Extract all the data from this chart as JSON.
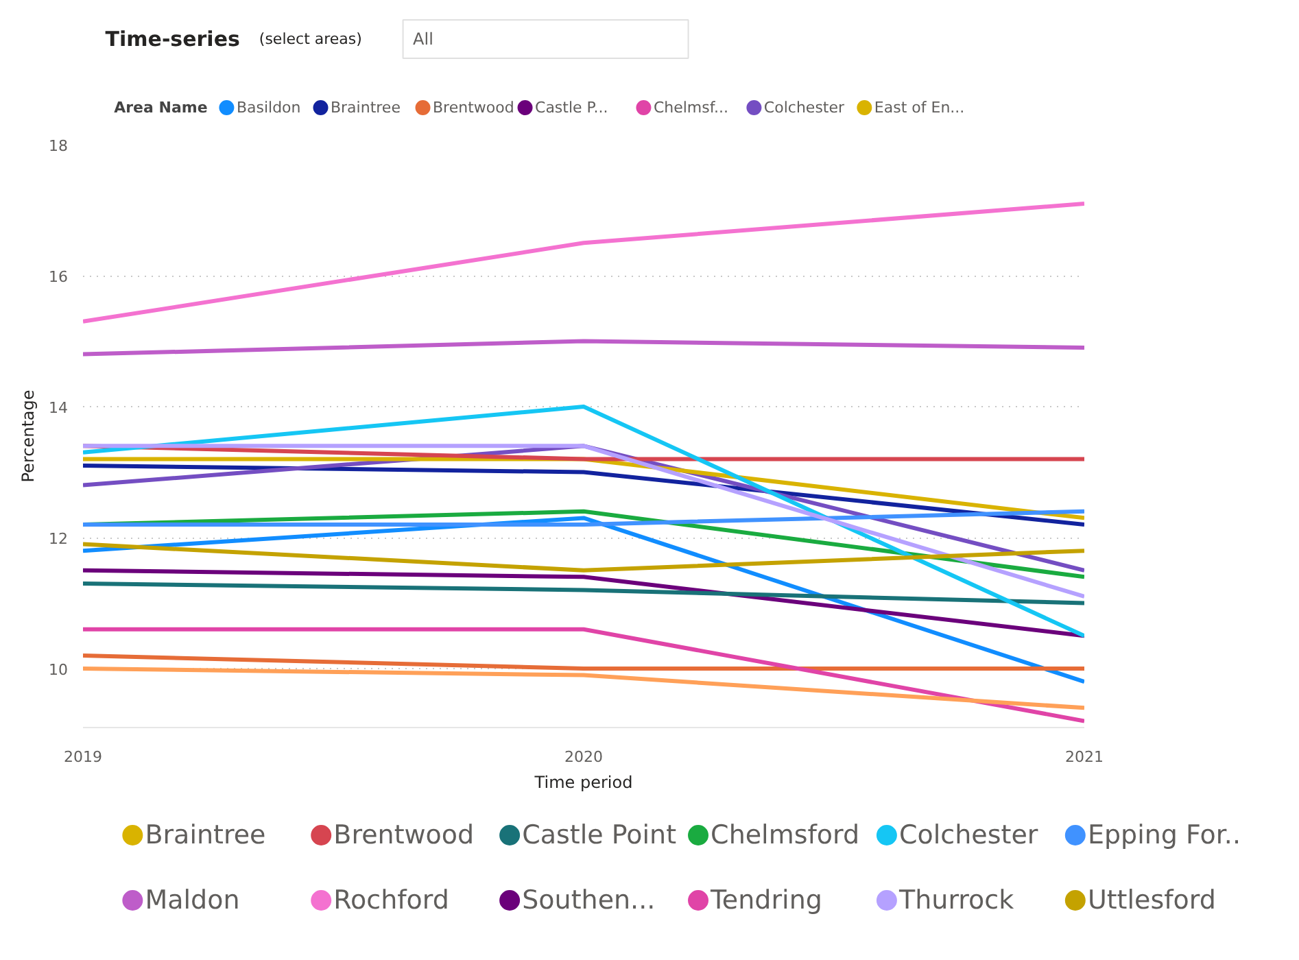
{
  "chart_data": [
    {
      "type": "line",
      "title": "Time-series",
      "subtitle": "(select areas)",
      "annotations": [
        "All"
      ],
      "legend_title": "Area Name",
      "xlabel": "Time period",
      "ylabel": "Percentage",
      "x": [
        2019,
        2020,
        2021
      ],
      "xlim": [
        2019,
        2021
      ],
      "xticks": [
        2019,
        2020,
        2021
      ],
      "ylim": [
        9.1,
        18
      ],
      "yticks": [
        10,
        12,
        14,
        16,
        18
      ],
      "grid": "y",
      "legend": "top left",
      "marker": "none",
      "line_style": "solid",
      "series": [
        {
          "name": "Basildon",
          "color": "#118dff",
          "values": [
            11.8,
            12.3,
            9.8
          ]
        },
        {
          "name": "Braintree",
          "color": "#12239e",
          "values": [
            13.1,
            13.0,
            12.2
          ]
        },
        {
          "name": "Brentwood",
          "color": "#e66c37",
          "values": [
            10.2,
            10.0,
            10.0
          ]
        },
        {
          "name": "Castle P...",
          "color": "#6b007b",
          "values": [
            11.5,
            11.4,
            10.5
          ]
        },
        {
          "name": "Chelmsf...",
          "color": "#e044a7",
          "values": [
            10.6,
            10.6,
            9.2
          ]
        },
        {
          "name": "Colchester",
          "color": "#744ec2",
          "values": [
            12.8,
            13.4,
            11.5
          ]
        },
        {
          "name": "East of En...",
          "color": "#d9b300",
          "values": [
            13.2,
            13.2,
            12.3
          ]
        },
        {
          "color": "#d64550",
          "values": [
            13.4,
            13.2,
            13.2
          ]
        },
        {
          "color": "#197278",
          "values": [
            11.3,
            11.2,
            11.0
          ]
        },
        {
          "color": "#1aab40",
          "values": [
            12.2,
            12.4,
            11.4
          ]
        },
        {
          "color": "#15c6f4",
          "values": [
            13.3,
            14.0,
            10.5
          ]
        },
        {
          "color": "#4092ff",
          "values": [
            12.2,
            12.2,
            12.4
          ]
        },
        {
          "color": "#ffa058",
          "values": [
            10.0,
            9.9,
            9.4
          ]
        },
        {
          "color": "#be5dc9",
          "values": [
            14.8,
            15.0,
            14.9
          ]
        },
        {
          "color": "#f472d0",
          "values": [
            15.3,
            16.5,
            17.1
          ]
        },
        {
          "color": "#b5a1ff",
          "values": [
            13.4,
            13.4,
            11.1
          ]
        },
        {
          "color": "#c4a200",
          "values": [
            11.9,
            11.5,
            11.8
          ]
        }
      ]
    },
    {
      "type": "other",
      "categories": [
        "Braintree",
        "Brentwood",
        "Castle Point",
        "Chelmsford",
        "Colchester",
        "Epping For..",
        "Maldon",
        "Rochford",
        "Southen...",
        "Tendring",
        "Thurrock",
        "Uttlesford"
      ],
      "colors": [
        "#d9b300",
        "#d64550",
        "#197278",
        "#1aab40",
        "#15c6f4",
        "#4092ff",
        "#be5dc9",
        "#f472d0",
        "#6b007b",
        "#e044a7",
        "#b5a1ff",
        "#c4a200"
      ]
    }
  ]
}
